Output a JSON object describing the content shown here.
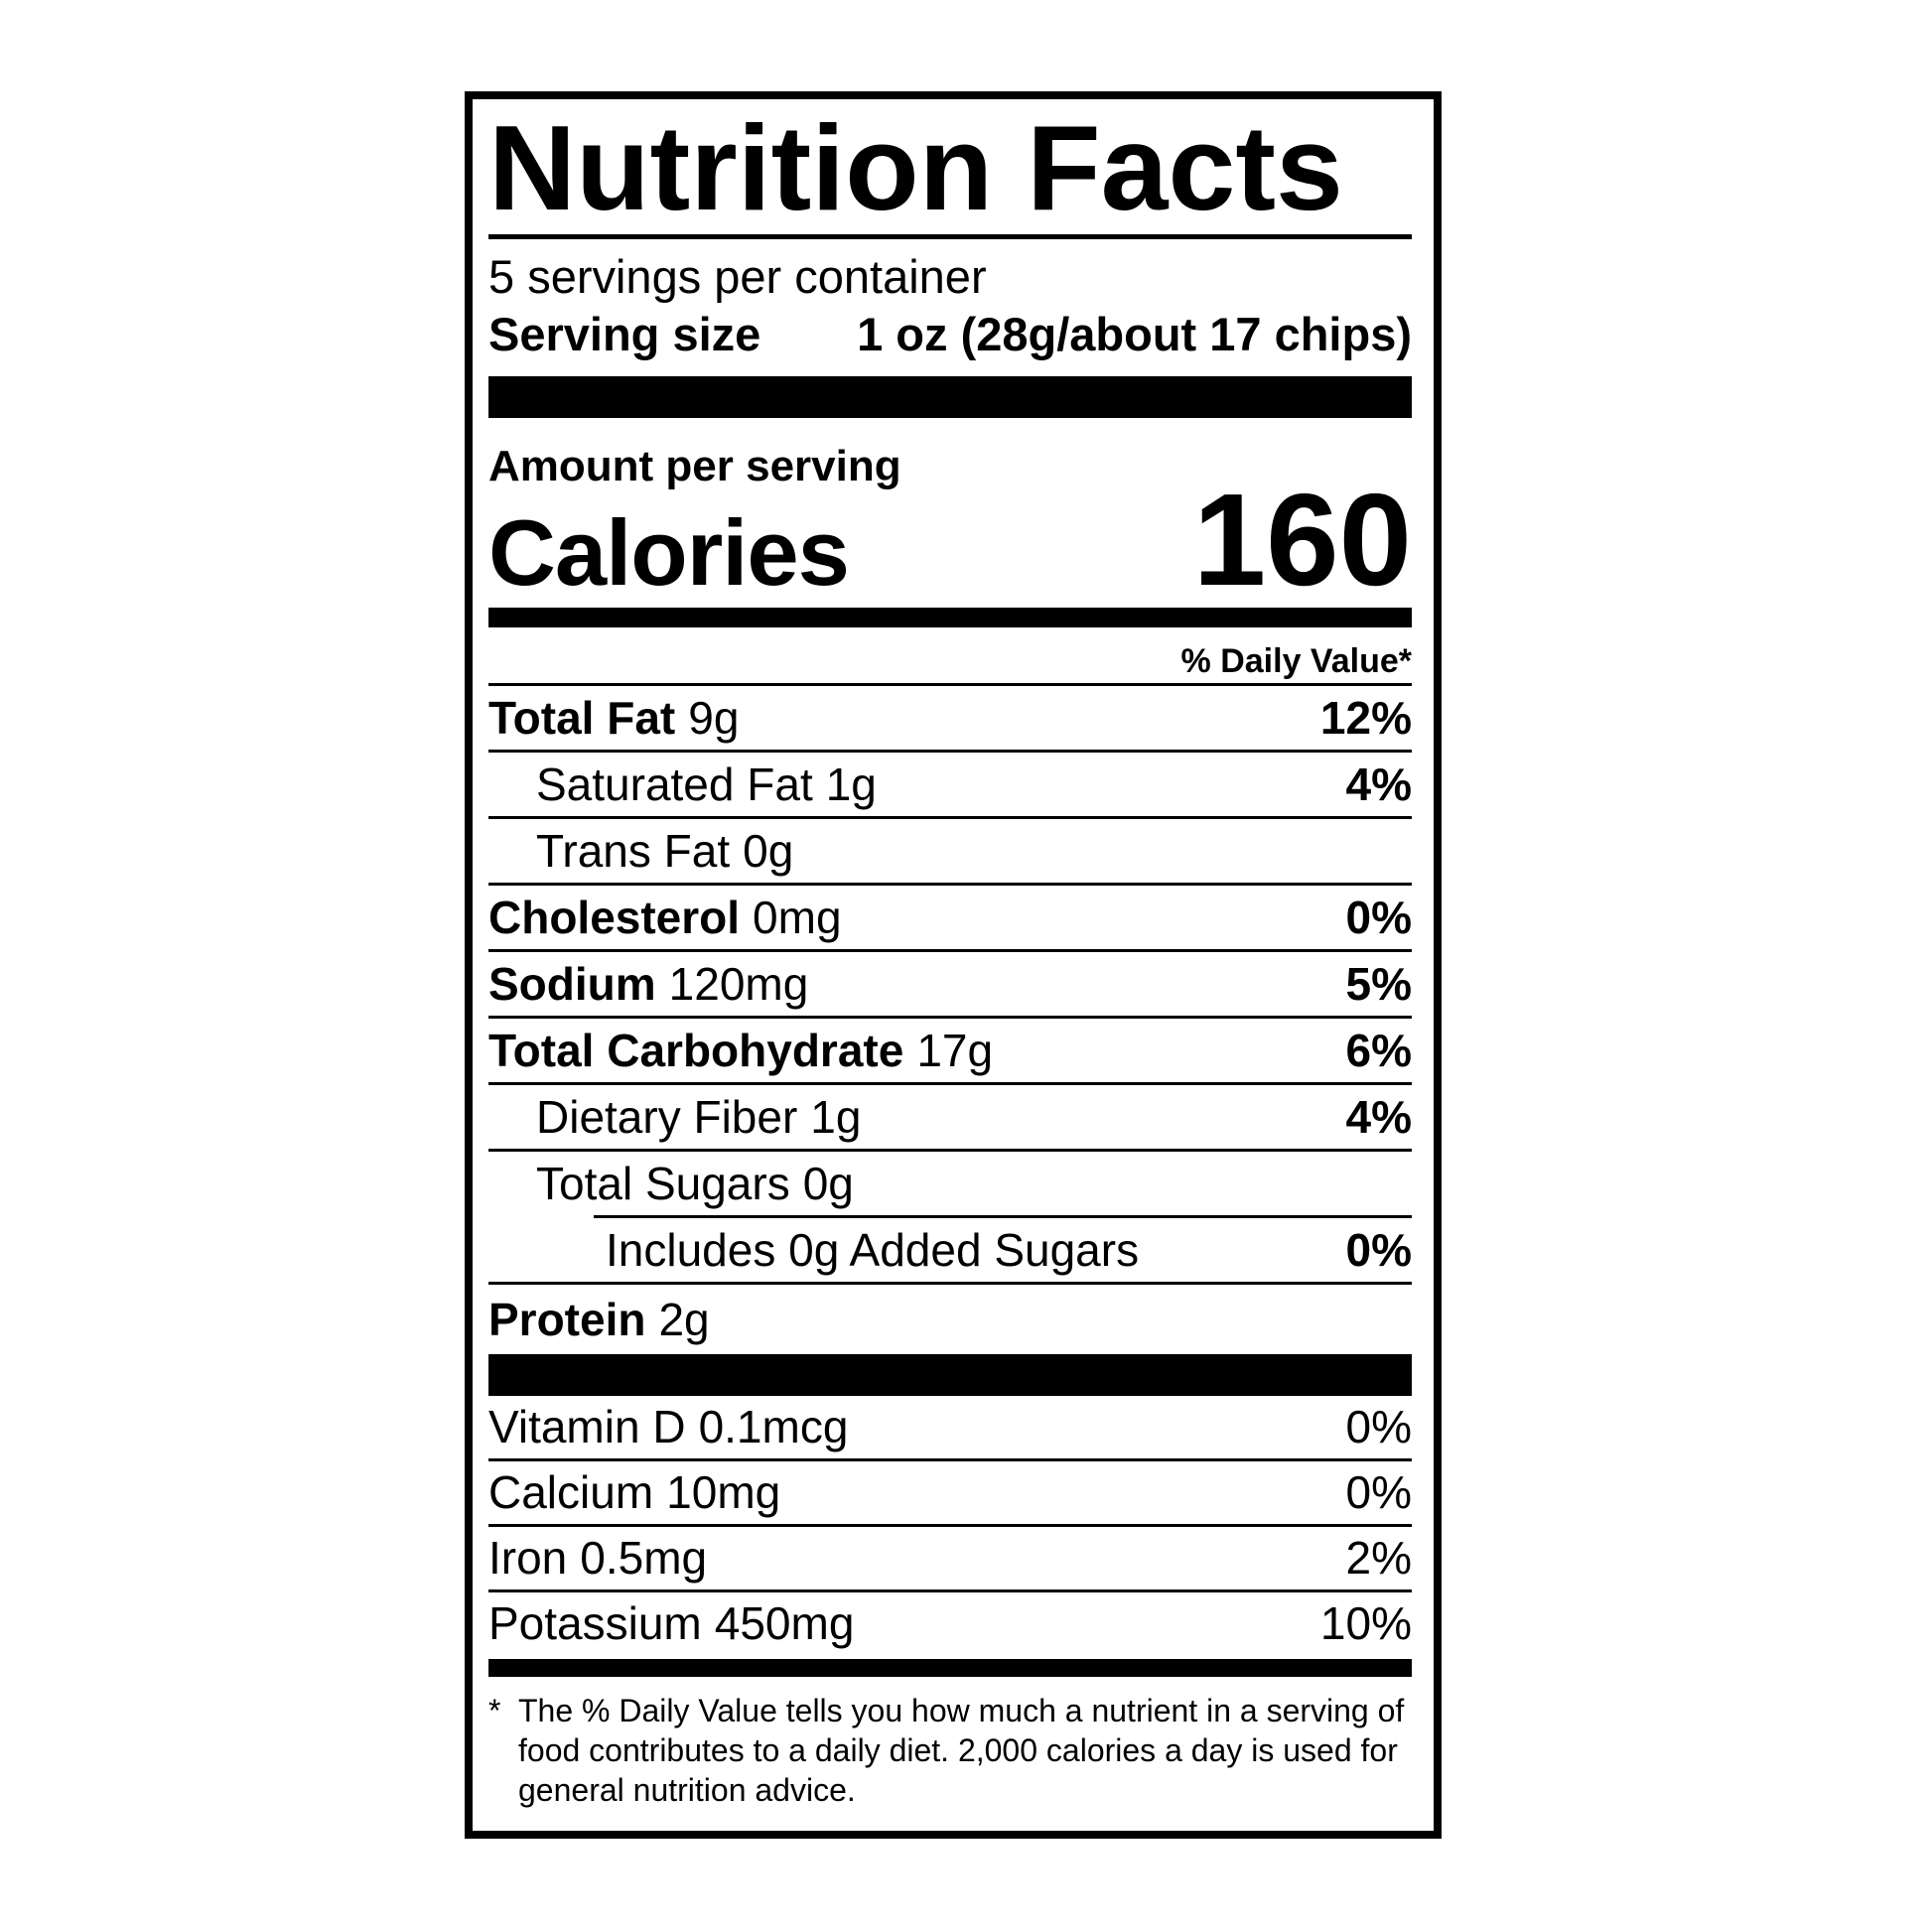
{
  "colors": {
    "ink": "#000000",
    "background": "#ffffff"
  },
  "label": {
    "title": "Nutrition Facts",
    "servings_per_container": "5 servings per container",
    "serving_size_label": "Serving size",
    "serving_size_value": "1 oz (28g/about 17 chips)",
    "amount_per_serving": "Amount per serving",
    "calories_label": "Calories",
    "calories_value": "160",
    "daily_value_header": "% Daily Value*",
    "nutrients": [
      {
        "name": "Total Fat",
        "amount": "9g",
        "dv": "12%"
      },
      {
        "name": "Saturated Fat",
        "amount": "1g",
        "dv": "4%"
      },
      {
        "name": "Trans Fat",
        "amount": "0g",
        "dv": ""
      },
      {
        "name": "Cholesterol",
        "amount": "0mg",
        "dv": "0%"
      },
      {
        "name": "Sodium",
        "amount": "120mg",
        "dv": "5%"
      },
      {
        "name": "Total Carbohydrate",
        "amount": "17g",
        "dv": "6%"
      },
      {
        "name": "Dietary Fiber",
        "amount": "1g",
        "dv": "4%"
      },
      {
        "name": "Total Sugars",
        "amount": "0g",
        "dv": ""
      },
      {
        "name": "Includes 0g Added Sugars",
        "amount": "",
        "dv": "0%"
      },
      {
        "name": "Protein",
        "amount": "2g",
        "dv": ""
      }
    ],
    "micronutrients": [
      {
        "name": "Vitamin D",
        "amount": "0.1mcg",
        "dv": "0%"
      },
      {
        "name": "Calcium",
        "amount": "10mg",
        "dv": "0%"
      },
      {
        "name": "Iron",
        "amount": "0.5mg",
        "dv": "2%"
      },
      {
        "name": "Potassium",
        "amount": "450mg",
        "dv": "10%"
      }
    ],
    "footnote_marker": "*",
    "footnote_text": "The % Daily Value tells you how much a nutrient in a serving of food contributes to a daily diet. 2,000 calories a day is used for general nutrition advice."
  }
}
